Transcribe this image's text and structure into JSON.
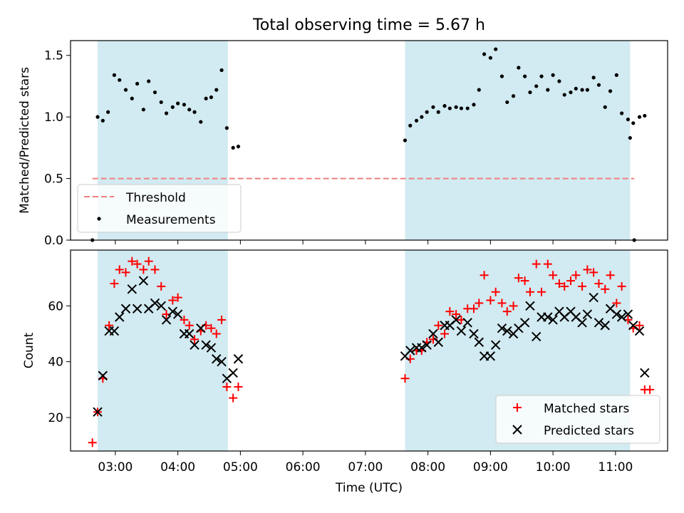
{
  "title": "Total observing time = 5.67 h",
  "colors": {
    "shade": "#add8e6",
    "threshold": "#f08080",
    "measurements": "#000000",
    "matched": "#ff0000",
    "predicted": "#000000"
  },
  "chart_data": [
    {
      "type": "scatter",
      "ylabel": "Matched/Predicted stars",
      "ylim": [
        0,
        1.62
      ],
      "yticks": [
        "0.0",
        "0.5",
        "1.0",
        "1.5"
      ],
      "legend": {
        "position": "lower-left",
        "entries": [
          "Threshold",
          "Measurements"
        ]
      },
      "shaded_intervals": [
        [
          "02:43",
          "04:48"
        ],
        [
          "07:38",
          "11:14"
        ]
      ],
      "threshold": {
        "name": "Threshold",
        "value": 0.5,
        "x_range": [
          "02:38",
          "11:18"
        ]
      },
      "series": [
        {
          "name": "Measurements",
          "points": [
            [
              "02:38",
              0.0
            ],
            [
              "02:43",
              1.0
            ],
            [
              "02:48",
              0.97
            ],
            [
              "02:53",
              1.04
            ],
            [
              "02:59",
              1.34
            ],
            [
              "03:04",
              1.3
            ],
            [
              "03:10",
              1.22
            ],
            [
              "03:16",
              1.15
            ],
            [
              "03:21",
              1.27
            ],
            [
              "03:27",
              1.06
            ],
            [
              "03:32",
              1.29
            ],
            [
              "03:38",
              1.2
            ],
            [
              "03:44",
              1.12
            ],
            [
              "03:49",
              1.03
            ],
            [
              "03:55",
              1.08
            ],
            [
              "04:00",
              1.11
            ],
            [
              "04:06",
              1.1
            ],
            [
              "04:11",
              1.06
            ],
            [
              "04:16",
              1.04
            ],
            [
              "04:22",
              0.96
            ],
            [
              "04:27",
              1.15
            ],
            [
              "04:32",
              1.16
            ],
            [
              "04:37",
              1.22
            ],
            [
              "04:42",
              1.38
            ],
            [
              "04:47",
              0.91
            ],
            [
              "04:53",
              0.75
            ],
            [
              "04:58",
              0.76
            ],
            [
              "07:38",
              0.81
            ],
            [
              "07:43",
              0.93
            ],
            [
              "07:49",
              0.97
            ],
            [
              "07:54",
              1.0
            ],
            [
              "07:59",
              1.04
            ],
            [
              "08:05",
              1.08
            ],
            [
              "08:10",
              1.04
            ],
            [
              "08:16",
              1.09
            ],
            [
              "08:21",
              1.07
            ],
            [
              "08:27",
              1.08
            ],
            [
              "08:32",
              1.07
            ],
            [
              "08:38",
              1.07
            ],
            [
              "08:44",
              1.1
            ],
            [
              "08:49",
              1.22
            ],
            [
              "08:54",
              1.51
            ],
            [
              "09:00",
              1.48
            ],
            [
              "09:05",
              1.55
            ],
            [
              "09:11",
              1.33
            ],
            [
              "09:16",
              1.12
            ],
            [
              "09:22",
              1.17
            ],
            [
              "09:27",
              1.4
            ],
            [
              "09:33",
              1.33
            ],
            [
              "09:38",
              1.2
            ],
            [
              "09:44",
              1.25
            ],
            [
              "09:49",
              1.33
            ],
            [
              "09:55",
              1.22
            ],
            [
              "10:00",
              1.34
            ],
            [
              "10:06",
              1.29
            ],
            [
              "10:11",
              1.18
            ],
            [
              "10:17",
              1.2
            ],
            [
              "10:22",
              1.23
            ],
            [
              "10:28",
              1.22
            ],
            [
              "10:33",
              1.22
            ],
            [
              "10:39",
              1.32
            ],
            [
              "10:44",
              1.26
            ],
            [
              "10:50",
              1.08
            ],
            [
              "10:55",
              1.21
            ],
            [
              "11:01",
              1.34
            ],
            [
              "11:06",
              1.03
            ],
            [
              "11:12",
              0.98
            ],
            [
              "11:17",
              0.95
            ],
            [
              "11:23",
              1.0
            ],
            [
              "11:28",
              1.01
            ],
            [
              "11:14",
              0.83
            ],
            [
              "11:18",
              0.0
            ]
          ]
        }
      ]
    },
    {
      "type": "scatter",
      "xlabel": "Time (UTC)",
      "ylabel": "Count",
      "ylim": [
        8,
        80
      ],
      "yticks": [
        "20",
        "40",
        "60"
      ],
      "xlim": [
        "02:17",
        "11:50"
      ],
      "xticks": [
        "03:00",
        "04:00",
        "05:00",
        "06:00",
        "07:00",
        "08:00",
        "09:00",
        "10:00",
        "11:00"
      ],
      "legend": {
        "position": "lower-right",
        "entries": [
          "Matched stars",
          "Predicted stars"
        ]
      },
      "shaded_intervals": [
        [
          "02:43",
          "04:48"
        ],
        [
          "07:38",
          "11:14"
        ]
      ],
      "series": [
        {
          "name": "Matched stars",
          "marker": "plus",
          "points": [
            [
              "02:38",
              11
            ],
            [
              "02:43",
              22
            ],
            [
              "02:48",
              34
            ],
            [
              "02:54",
              53
            ],
            [
              "02:59",
              68
            ],
            [
              "03:04",
              73
            ],
            [
              "03:10",
              72
            ],
            [
              "03:16",
              76
            ],
            [
              "03:21",
              75
            ],
            [
              "03:27",
              73
            ],
            [
              "03:32",
              76
            ],
            [
              "03:38",
              73
            ],
            [
              "03:44",
              67
            ],
            [
              "03:49",
              57
            ],
            [
              "03:55",
              62
            ],
            [
              "04:00",
              63
            ],
            [
              "04:06",
              55
            ],
            [
              "04:11",
              53
            ],
            [
              "04:16",
              48
            ],
            [
              "04:22",
              51
            ],
            [
              "04:27",
              53
            ],
            [
              "04:32",
              52
            ],
            [
              "04:37",
              50
            ],
            [
              "04:42",
              55
            ],
            [
              "04:47",
              31
            ],
            [
              "04:53",
              27
            ],
            [
              "04:58",
              31
            ],
            [
              "07:38",
              34
            ],
            [
              "07:43",
              41
            ],
            [
              "07:49",
              44
            ],
            [
              "07:54",
              44
            ],
            [
              "07:59",
              47
            ],
            [
              "08:05",
              48
            ],
            [
              "08:10",
              53
            ],
            [
              "08:16",
              50
            ],
            [
              "08:21",
              58
            ],
            [
              "08:27",
              57
            ],
            [
              "08:32",
              55
            ],
            [
              "08:38",
              59
            ],
            [
              "08:44",
              59
            ],
            [
              "08:49",
              61
            ],
            [
              "08:54",
              71
            ],
            [
              "09:00",
              62
            ],
            [
              "09:05",
              65
            ],
            [
              "09:11",
              61
            ],
            [
              "09:16",
              58
            ],
            [
              "09:22",
              60
            ],
            [
              "09:27",
              70
            ],
            [
              "09:33",
              69
            ],
            [
              "09:38",
              65
            ],
            [
              "09:44",
              75
            ],
            [
              "09:49",
              65
            ],
            [
              "09:55",
              75
            ],
            [
              "10:00",
              71
            ],
            [
              "10:06",
              68
            ],
            [
              "10:11",
              67
            ],
            [
              "10:17",
              69
            ],
            [
              "10:22",
              71
            ],
            [
              "10:28",
              67
            ],
            [
              "10:33",
              73
            ],
            [
              "10:39",
              72
            ],
            [
              "10:44",
              68
            ],
            [
              "10:50",
              66
            ],
            [
              "10:55",
              71
            ],
            [
              "11:01",
              61
            ],
            [
              "11:06",
              67
            ],
            [
              "11:12",
              55
            ],
            [
              "11:17",
              52
            ],
            [
              "11:23",
              53
            ],
            [
              "11:28",
              30
            ],
            [
              "11:33",
              30
            ]
          ]
        },
        {
          "name": "Predicted stars",
          "marker": "x",
          "points": [
            [
              "02:43",
              22
            ],
            [
              "02:48",
              35
            ],
            [
              "02:54",
              51
            ],
            [
              "02:59",
              51
            ],
            [
              "03:04",
              56
            ],
            [
              "03:10",
              59
            ],
            [
              "03:16",
              66
            ],
            [
              "03:21",
              59
            ],
            [
              "03:27",
              69
            ],
            [
              "03:32",
              59
            ],
            [
              "03:38",
              61
            ],
            [
              "03:44",
              60
            ],
            [
              "03:49",
              55
            ],
            [
              "03:55",
              58
            ],
            [
              "04:00",
              57
            ],
            [
              "04:06",
              50
            ],
            [
              "04:11",
              50
            ],
            [
              "04:16",
              46
            ],
            [
              "04:22",
              52
            ],
            [
              "04:27",
              46
            ],
            [
              "04:32",
              45
            ],
            [
              "04:37",
              41
            ],
            [
              "04:42",
              40
            ],
            [
              "04:47",
              34
            ],
            [
              "04:53",
              36
            ],
            [
              "04:58",
              41
            ],
            [
              "07:38",
              42
            ],
            [
              "07:43",
              44
            ],
            [
              "07:49",
              45
            ],
            [
              "07:54",
              45
            ],
            [
              "07:59",
              46
            ],
            [
              "08:05",
              50
            ],
            [
              "08:10",
              47
            ],
            [
              "08:16",
              53
            ],
            [
              "08:21",
              53
            ],
            [
              "08:27",
              55
            ],
            [
              "08:32",
              51
            ],
            [
              "08:38",
              54
            ],
            [
              "08:44",
              50
            ],
            [
              "08:49",
              47
            ],
            [
              "08:54",
              42
            ],
            [
              "09:00",
              42
            ],
            [
              "09:05",
              46
            ],
            [
              "09:11",
              52
            ],
            [
              "09:16",
              51
            ],
            [
              "09:22",
              50
            ],
            [
              "09:27",
              52
            ],
            [
              "09:33",
              54
            ],
            [
              "09:38",
              60
            ],
            [
              "09:44",
              49
            ],
            [
              "09:49",
              56
            ],
            [
              "09:55",
              56
            ],
            [
              "10:00",
              55
            ],
            [
              "10:06",
              58
            ],
            [
              "10:11",
              56
            ],
            [
              "10:17",
              58
            ],
            [
              "10:22",
              56
            ],
            [
              "10:28",
              54
            ],
            [
              "10:33",
              57
            ],
            [
              "10:39",
              63
            ],
            [
              "10:44",
              54
            ],
            [
              "10:50",
              53
            ],
            [
              "10:55",
              59
            ],
            [
              "11:01",
              57
            ],
            [
              "11:06",
              56
            ],
            [
              "11:12",
              57
            ],
            [
              "11:17",
              53
            ],
            [
              "11:23",
              51
            ],
            [
              "11:28",
              36
            ]
          ]
        }
      ]
    }
  ]
}
